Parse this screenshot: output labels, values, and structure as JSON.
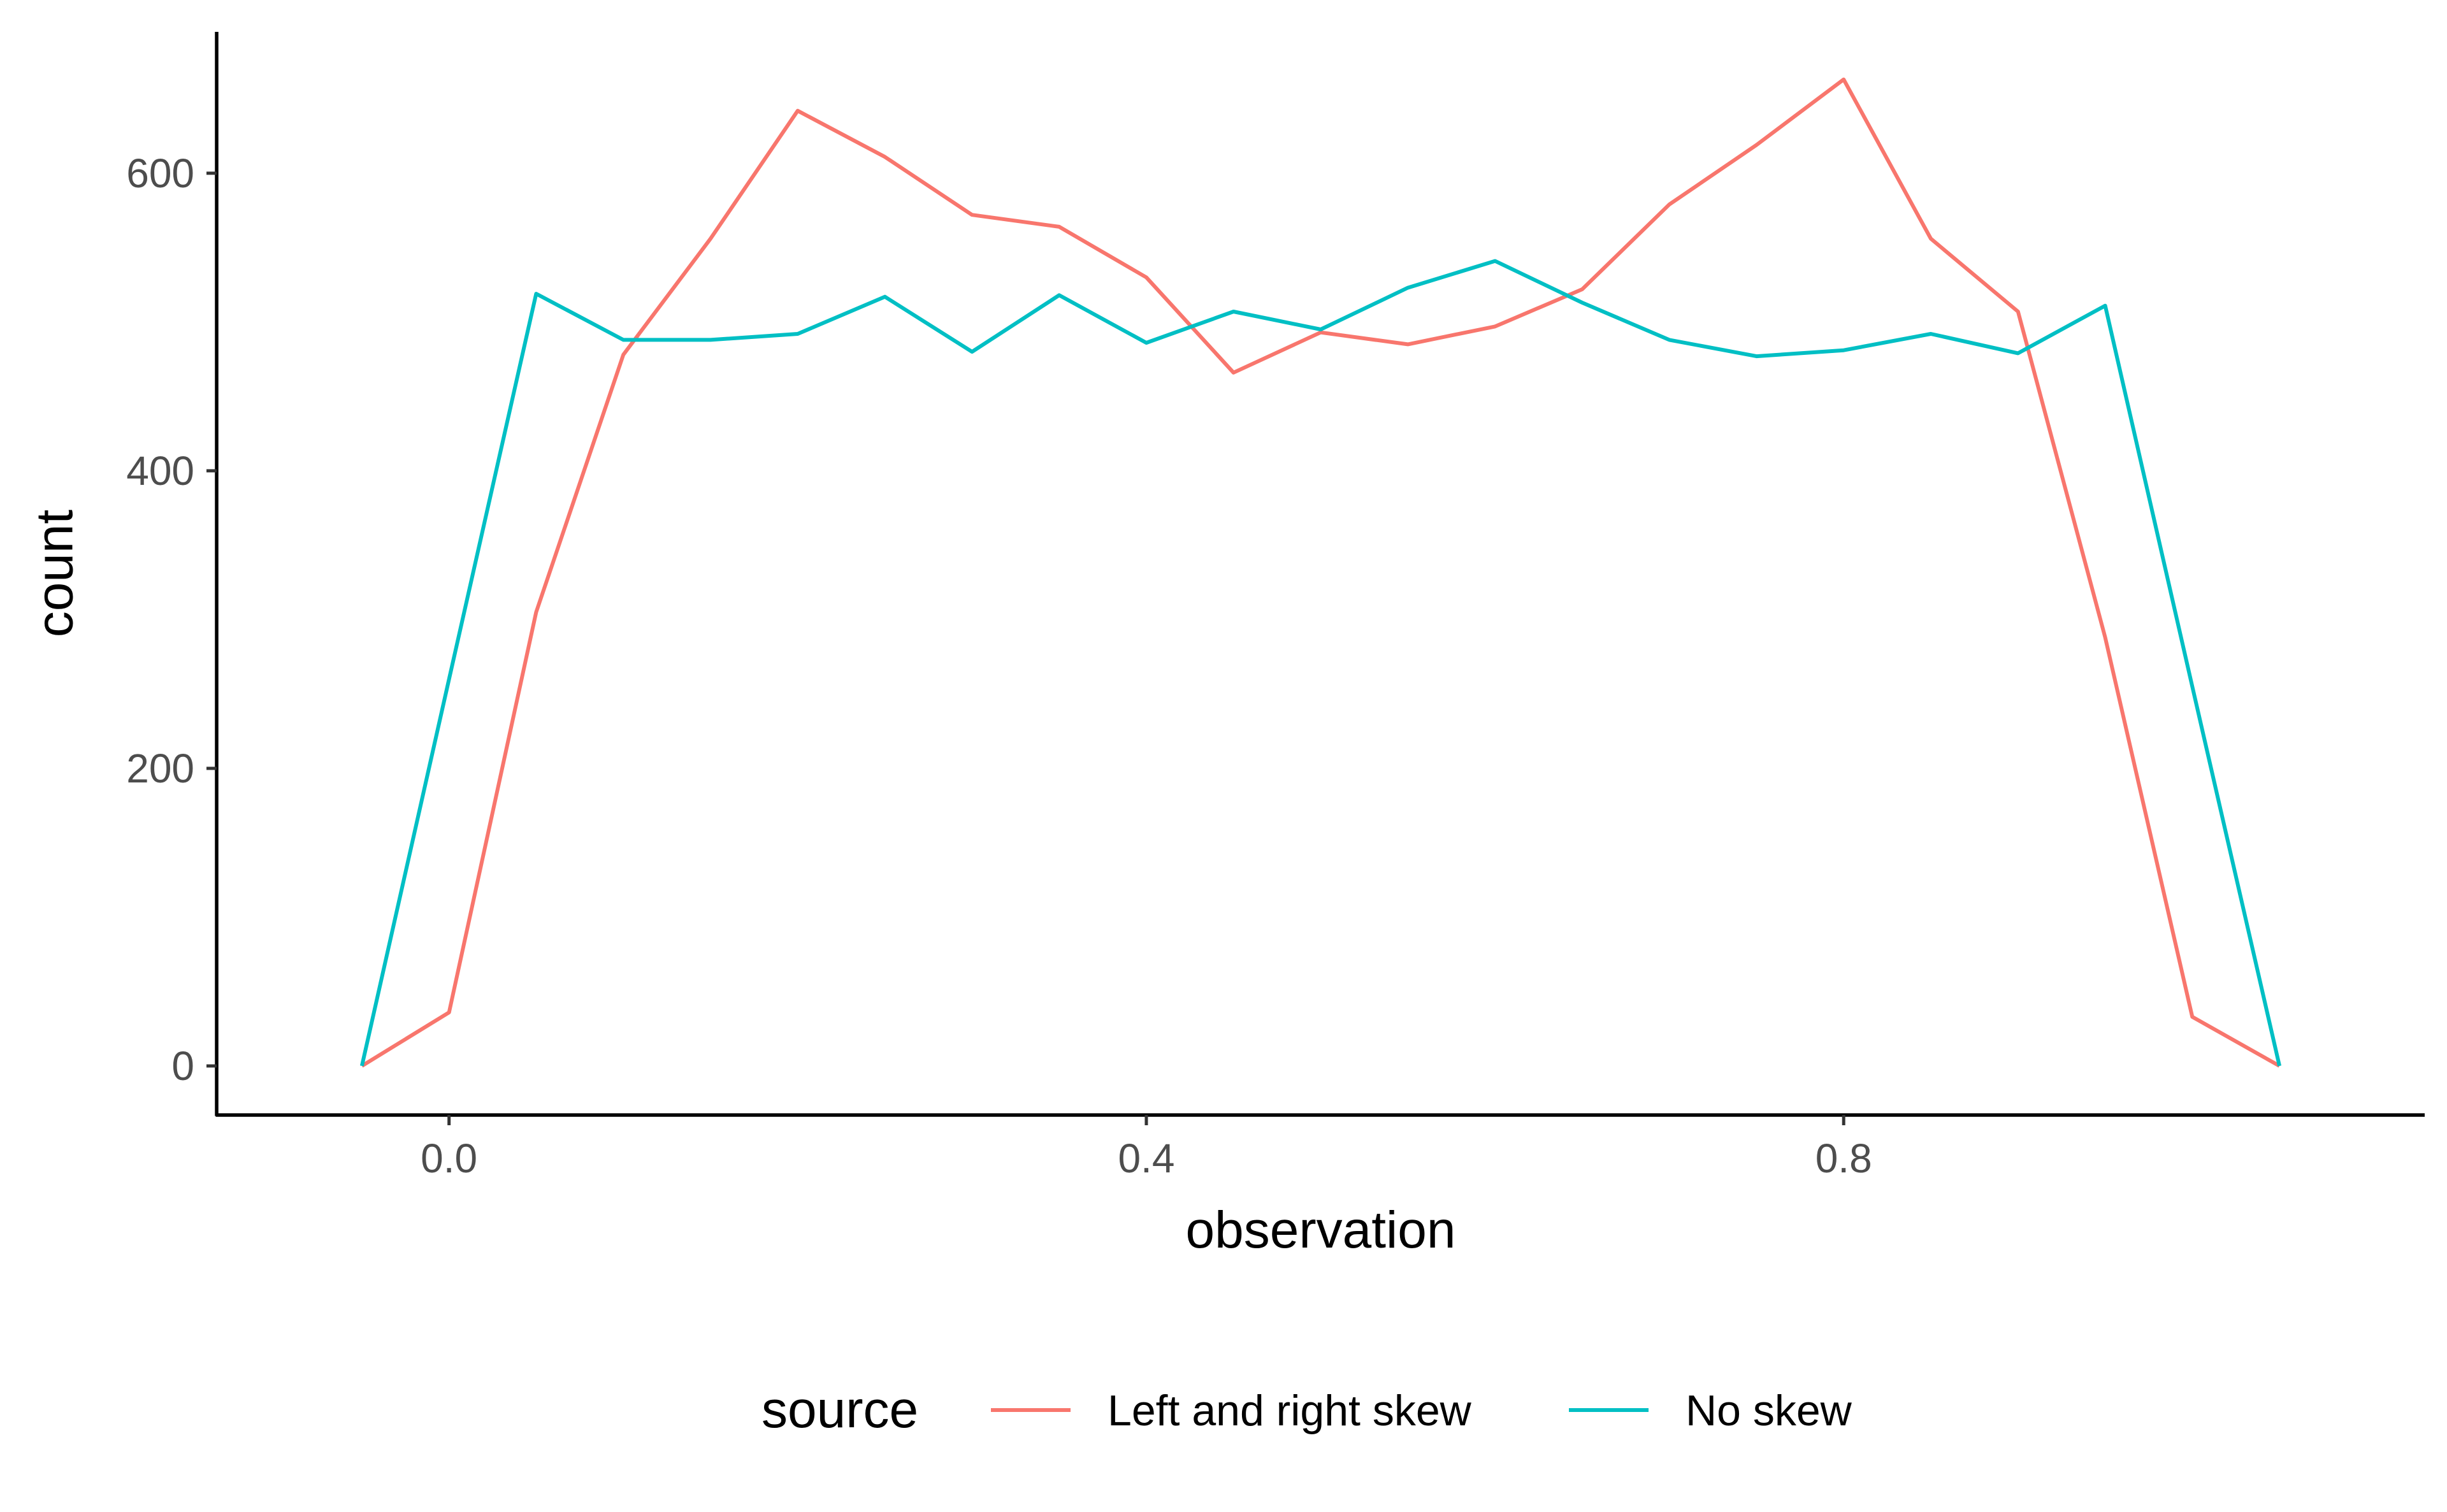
{
  "chart_data": {
    "type": "line",
    "title": "",
    "xlabel": "observation",
    "ylabel": "count",
    "xlim": [
      -0.1333,
      1.1333
    ],
    "ylim": [
      -33,
      695
    ],
    "x_ticks": [
      0.0,
      0.4,
      0.8
    ],
    "x_tick_labels": [
      "0.0",
      "0.4",
      "0.8"
    ],
    "y_ticks": [
      0,
      200,
      400,
      600
    ],
    "y_tick_labels": [
      "0",
      "200",
      "400",
      "600"
    ],
    "grid": false,
    "legend": {
      "title": "source",
      "position": "bottom"
    },
    "series": [
      {
        "name": "Left and right skew",
        "color": "#F8766D",
        "x": [
          -0.05,
          0.0,
          0.05,
          0.1,
          0.15,
          0.2,
          0.25,
          0.3,
          0.35,
          0.4,
          0.45,
          0.5,
          0.55,
          0.6,
          0.65,
          0.7,
          0.75,
          0.8,
          0.85,
          0.9,
          0.95,
          1.0,
          1.05
        ],
        "values": [
          0,
          36,
          305,
          478,
          556,
          642,
          611,
          572,
          564,
          530,
          466,
          493,
          485,
          497,
          522,
          579,
          619,
          663,
          556,
          507,
          288,
          33,
          0
        ]
      },
      {
        "name": "No skew",
        "color": "#00BFC4",
        "x": [
          -0.05,
          0.0,
          0.05,
          0.1,
          0.15,
          0.2,
          0.25,
          0.3,
          0.35,
          0.4,
          0.45,
          0.5,
          0.55,
          0.6,
          0.65,
          0.7,
          0.75,
          0.8,
          0.85,
          0.9,
          0.95,
          1.0,
          1.05
        ],
        "values": [
          0,
          260,
          519,
          488,
          488,
          492,
          517,
          480,
          518,
          486,
          507,
          495,
          523,
          541,
          513,
          488,
          477,
          481,
          492,
          479,
          511,
          255,
          0
        ]
      }
    ]
  }
}
